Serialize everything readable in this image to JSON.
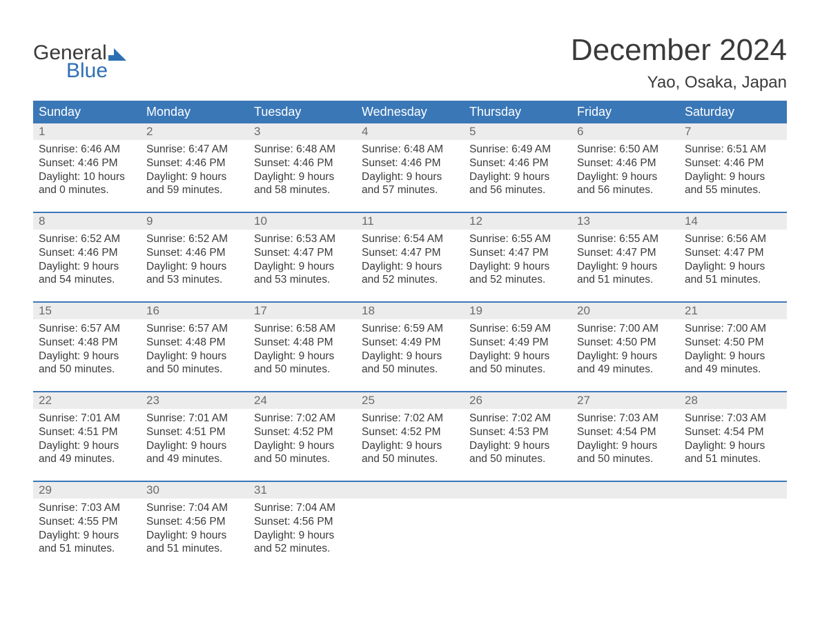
{
  "logo": {
    "top": "General",
    "bottom": "Blue",
    "flag_color": "#2d6fb3"
  },
  "title": "December 2024",
  "location": "Yao, Osaka, Japan",
  "colors": {
    "header_bg": "#3a77b7",
    "header_text": "#ffffff",
    "week_border": "#3a77b7",
    "daynum_bg": "#ececec",
    "daynum_text": "#6a6a6a",
    "body_text": "#3a3a3a",
    "page_bg": "#ffffff"
  },
  "day_names": [
    "Sunday",
    "Monday",
    "Tuesday",
    "Wednesday",
    "Thursday",
    "Friday",
    "Saturday"
  ],
  "weeks": [
    [
      {
        "n": "1",
        "sunrise": "Sunrise: 6:46 AM",
        "sunset": "Sunset: 4:46 PM",
        "d1": "Daylight: 10 hours",
        "d2": "and 0 minutes."
      },
      {
        "n": "2",
        "sunrise": "Sunrise: 6:47 AM",
        "sunset": "Sunset: 4:46 PM",
        "d1": "Daylight: 9 hours",
        "d2": "and 59 minutes."
      },
      {
        "n": "3",
        "sunrise": "Sunrise: 6:48 AM",
        "sunset": "Sunset: 4:46 PM",
        "d1": "Daylight: 9 hours",
        "d2": "and 58 minutes."
      },
      {
        "n": "4",
        "sunrise": "Sunrise: 6:48 AM",
        "sunset": "Sunset: 4:46 PM",
        "d1": "Daylight: 9 hours",
        "d2": "and 57 minutes."
      },
      {
        "n": "5",
        "sunrise": "Sunrise: 6:49 AM",
        "sunset": "Sunset: 4:46 PM",
        "d1": "Daylight: 9 hours",
        "d2": "and 56 minutes."
      },
      {
        "n": "6",
        "sunrise": "Sunrise: 6:50 AM",
        "sunset": "Sunset: 4:46 PM",
        "d1": "Daylight: 9 hours",
        "d2": "and 56 minutes."
      },
      {
        "n": "7",
        "sunrise": "Sunrise: 6:51 AM",
        "sunset": "Sunset: 4:46 PM",
        "d1": "Daylight: 9 hours",
        "d2": "and 55 minutes."
      }
    ],
    [
      {
        "n": "8",
        "sunrise": "Sunrise: 6:52 AM",
        "sunset": "Sunset: 4:46 PM",
        "d1": "Daylight: 9 hours",
        "d2": "and 54 minutes."
      },
      {
        "n": "9",
        "sunrise": "Sunrise: 6:52 AM",
        "sunset": "Sunset: 4:46 PM",
        "d1": "Daylight: 9 hours",
        "d2": "and 53 minutes."
      },
      {
        "n": "10",
        "sunrise": "Sunrise: 6:53 AM",
        "sunset": "Sunset: 4:47 PM",
        "d1": "Daylight: 9 hours",
        "d2": "and 53 minutes."
      },
      {
        "n": "11",
        "sunrise": "Sunrise: 6:54 AM",
        "sunset": "Sunset: 4:47 PM",
        "d1": "Daylight: 9 hours",
        "d2": "and 52 minutes."
      },
      {
        "n": "12",
        "sunrise": "Sunrise: 6:55 AM",
        "sunset": "Sunset: 4:47 PM",
        "d1": "Daylight: 9 hours",
        "d2": "and 52 minutes."
      },
      {
        "n": "13",
        "sunrise": "Sunrise: 6:55 AM",
        "sunset": "Sunset: 4:47 PM",
        "d1": "Daylight: 9 hours",
        "d2": "and 51 minutes."
      },
      {
        "n": "14",
        "sunrise": "Sunrise: 6:56 AM",
        "sunset": "Sunset: 4:47 PM",
        "d1": "Daylight: 9 hours",
        "d2": "and 51 minutes."
      }
    ],
    [
      {
        "n": "15",
        "sunrise": "Sunrise: 6:57 AM",
        "sunset": "Sunset: 4:48 PM",
        "d1": "Daylight: 9 hours",
        "d2": "and 50 minutes."
      },
      {
        "n": "16",
        "sunrise": "Sunrise: 6:57 AM",
        "sunset": "Sunset: 4:48 PM",
        "d1": "Daylight: 9 hours",
        "d2": "and 50 minutes."
      },
      {
        "n": "17",
        "sunrise": "Sunrise: 6:58 AM",
        "sunset": "Sunset: 4:48 PM",
        "d1": "Daylight: 9 hours",
        "d2": "and 50 minutes."
      },
      {
        "n": "18",
        "sunrise": "Sunrise: 6:59 AM",
        "sunset": "Sunset: 4:49 PM",
        "d1": "Daylight: 9 hours",
        "d2": "and 50 minutes."
      },
      {
        "n": "19",
        "sunrise": "Sunrise: 6:59 AM",
        "sunset": "Sunset: 4:49 PM",
        "d1": "Daylight: 9 hours",
        "d2": "and 50 minutes."
      },
      {
        "n": "20",
        "sunrise": "Sunrise: 7:00 AM",
        "sunset": "Sunset: 4:50 PM",
        "d1": "Daylight: 9 hours",
        "d2": "and 49 minutes."
      },
      {
        "n": "21",
        "sunrise": "Sunrise: 7:00 AM",
        "sunset": "Sunset: 4:50 PM",
        "d1": "Daylight: 9 hours",
        "d2": "and 49 minutes."
      }
    ],
    [
      {
        "n": "22",
        "sunrise": "Sunrise: 7:01 AM",
        "sunset": "Sunset: 4:51 PM",
        "d1": "Daylight: 9 hours",
        "d2": "and 49 minutes."
      },
      {
        "n": "23",
        "sunrise": "Sunrise: 7:01 AM",
        "sunset": "Sunset: 4:51 PM",
        "d1": "Daylight: 9 hours",
        "d2": "and 49 minutes."
      },
      {
        "n": "24",
        "sunrise": "Sunrise: 7:02 AM",
        "sunset": "Sunset: 4:52 PM",
        "d1": "Daylight: 9 hours",
        "d2": "and 50 minutes."
      },
      {
        "n": "25",
        "sunrise": "Sunrise: 7:02 AM",
        "sunset": "Sunset: 4:52 PM",
        "d1": "Daylight: 9 hours",
        "d2": "and 50 minutes."
      },
      {
        "n": "26",
        "sunrise": "Sunrise: 7:02 AM",
        "sunset": "Sunset: 4:53 PM",
        "d1": "Daylight: 9 hours",
        "d2": "and 50 minutes."
      },
      {
        "n": "27",
        "sunrise": "Sunrise: 7:03 AM",
        "sunset": "Sunset: 4:54 PM",
        "d1": "Daylight: 9 hours",
        "d2": "and 50 minutes."
      },
      {
        "n": "28",
        "sunrise": "Sunrise: 7:03 AM",
        "sunset": "Sunset: 4:54 PM",
        "d1": "Daylight: 9 hours",
        "d2": "and 51 minutes."
      }
    ],
    [
      {
        "n": "29",
        "sunrise": "Sunrise: 7:03 AM",
        "sunset": "Sunset: 4:55 PM",
        "d1": "Daylight: 9 hours",
        "d2": "and 51 minutes."
      },
      {
        "n": "30",
        "sunrise": "Sunrise: 7:04 AM",
        "sunset": "Sunset: 4:56 PM",
        "d1": "Daylight: 9 hours",
        "d2": "and 51 minutes."
      },
      {
        "n": "31",
        "sunrise": "Sunrise: 7:04 AM",
        "sunset": "Sunset: 4:56 PM",
        "d1": "Daylight: 9 hours",
        "d2": "and 52 minutes."
      },
      {
        "empty": true
      },
      {
        "empty": true
      },
      {
        "empty": true
      },
      {
        "empty": true
      }
    ]
  ]
}
